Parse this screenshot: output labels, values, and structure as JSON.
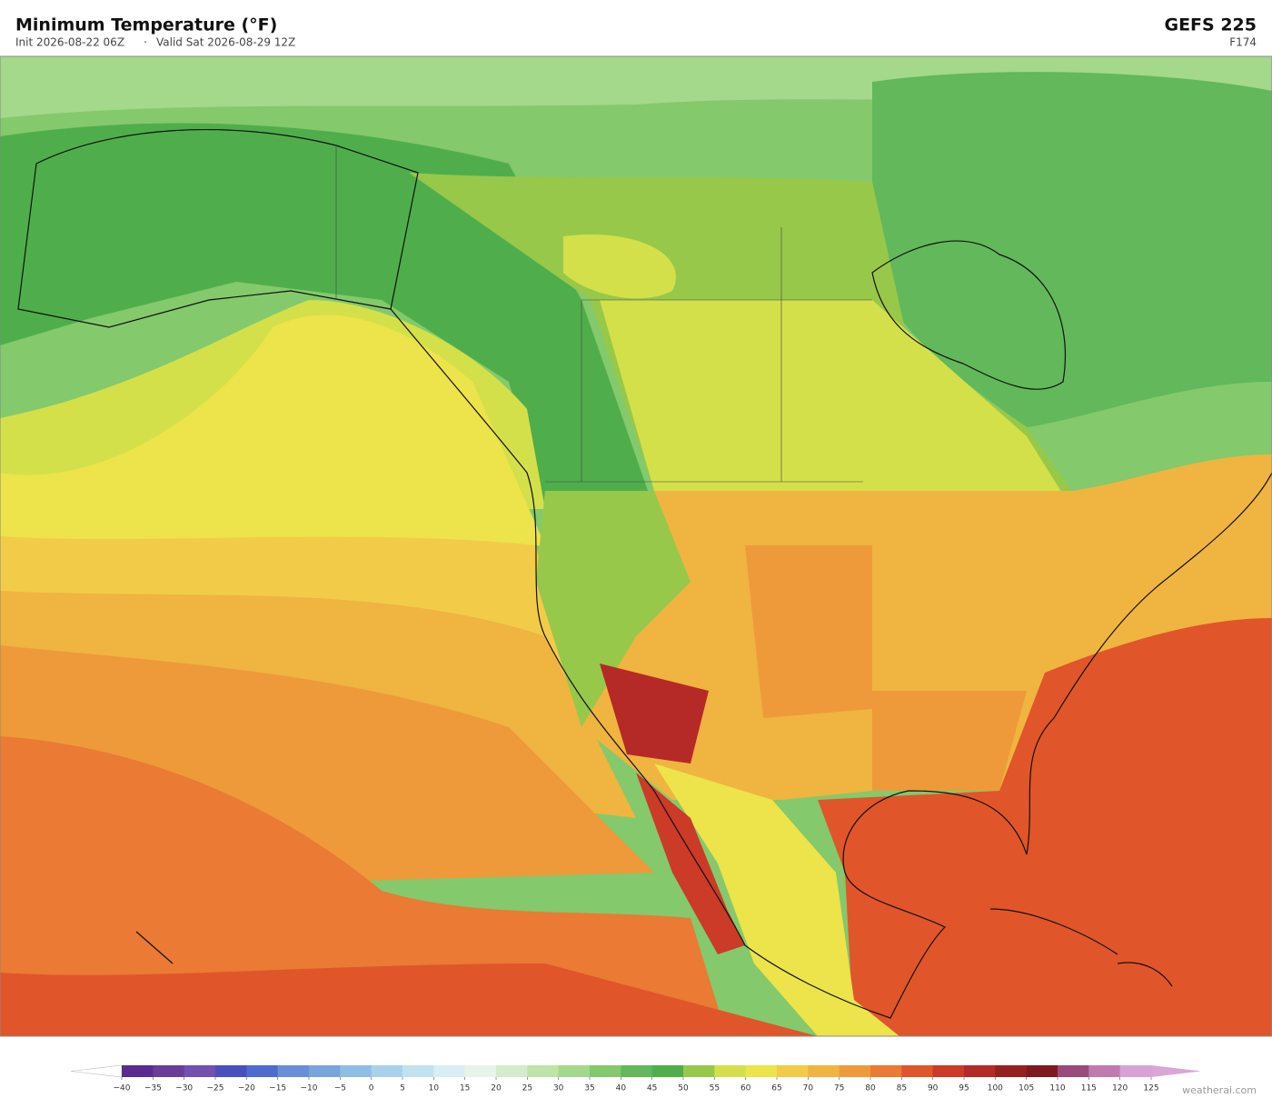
{
  "header": {
    "title": "Minimum Temperature  (°F)",
    "init": "Init 2026-08-22 06Z",
    "valid": "Valid Sat 2026-08-29 12Z",
    "model": "GEFS  225",
    "forecast_hour": "F174"
  },
  "colorbar": {
    "ticks": [
      {
        "value": -40,
        "label": "−40"
      },
      {
        "value": -35,
        "label": "−35"
      },
      {
        "value": -30,
        "label": "−30"
      },
      {
        "value": -25,
        "label": "−25"
      },
      {
        "value": -20,
        "label": "−20"
      },
      {
        "value": -15,
        "label": "−15"
      },
      {
        "value": -10,
        "label": "−10"
      },
      {
        "value": -5,
        "label": "−5"
      },
      0,
      5,
      10,
      15,
      20,
      25,
      30,
      35,
      40,
      45,
      50,
      55,
      60,
      65,
      70,
      75,
      80,
      85,
      90,
      95,
      100,
      105,
      110,
      115,
      120,
      125
    ],
    "colors": [
      "#5b2c8f",
      "#6a3d9a",
      "#7450b0",
      "#4a4fc0",
      "#4f6bd0",
      "#6a8fd8",
      "#7aa5dc",
      "#8fbde3",
      "#a9d2ea",
      "#c3e2ef",
      "#d9eef3",
      "#e6f4ea",
      "#d3edcc",
      "#bfe3a8",
      "#a4d88a",
      "#84c96c",
      "#62b85a",
      "#4fae4b",
      "#97c84a",
      "#d4e04a",
      "#ede34a",
      "#f2cc48",
      "#f0b440",
      "#ee9a3a",
      "#ea7a34",
      "#e1552b",
      "#cc3a28",
      "#b52a26",
      "#962021",
      "#7e1a1f",
      "#9b4a7c",
      "#c07ab0",
      "#d8a3d4"
    ],
    "under_color": "#ffffff",
    "over_color": "#d9a6d6"
  },
  "watermark": "weatherai.com"
}
